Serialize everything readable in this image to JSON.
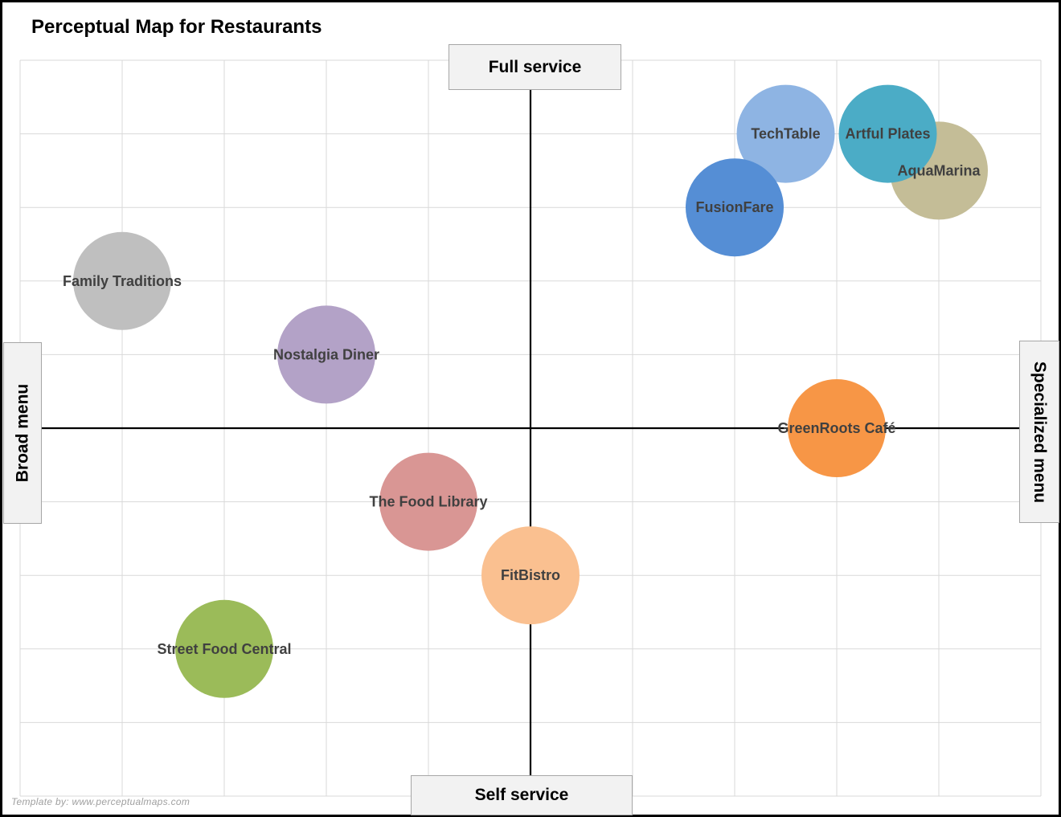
{
  "chart_data": {
    "type": "scatter",
    "title": "Perceptual Map for Restaurants",
    "axis_labels": {
      "top": "Full service",
      "bottom": "Self service",
      "left": "Broad menu",
      "right": "Specialized menu"
    },
    "xlim": [
      -5,
      5
    ],
    "ylim": [
      -5,
      5
    ],
    "grid": true,
    "points": [
      {
        "label": "TechTable",
        "x": 2.5,
        "y": 4.0,
        "color": "#8eb4e3"
      },
      {
        "label": "AquaMarina",
        "x": 4.0,
        "y": 3.5,
        "color": "#c4bd97"
      },
      {
        "label": "Artful Plates",
        "x": 3.5,
        "y": 4.0,
        "color": "#4bacc6"
      },
      {
        "label": "FusionFare",
        "x": 2.0,
        "y": 3.0,
        "color": "#558ed5"
      },
      {
        "label": "Family Traditions",
        "x": -4.0,
        "y": 2.0,
        "color": "#bfbfbf"
      },
      {
        "label": "Nostalgia Diner",
        "x": -2.0,
        "y": 1.0,
        "color": "#b3a2c7"
      },
      {
        "label": "GreenRoots Café",
        "x": 3.0,
        "y": 0.0,
        "color": "#f79646"
      },
      {
        "label": "The Food Library",
        "x": -1.0,
        "y": -1.0,
        "color": "#d99694"
      },
      {
        "label": "FitBistro",
        "x": 0.0,
        "y": -2.0,
        "color": "#fac090"
      },
      {
        "label": "Street Food Central",
        "x": -3.0,
        "y": -3.0,
        "color": "#9bbb59"
      }
    ]
  },
  "footer": {
    "credit": "Template by: www.perceptualmaps.com"
  }
}
